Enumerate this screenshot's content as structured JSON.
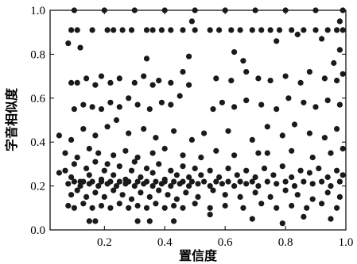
{
  "chart_data": {
    "type": "scatter",
    "xlabel": "置信度",
    "ylabel": "字音相似度",
    "xlim": [
      0.02,
      1.0
    ],
    "ylim": [
      0.0,
      1.0
    ],
    "xticks": [
      0.2,
      0.4,
      0.6,
      0.8,
      1.0
    ],
    "xtick_labels": [
      "0.2",
      "0.4",
      "0.6",
      "0.8",
      "1.0"
    ],
    "yticks": [
      0.0,
      0.2,
      0.4,
      0.6,
      0.8,
      1.0
    ],
    "ytick_labels": [
      "0.0",
      "0.2",
      "0.4",
      "0.6",
      "0.8",
      "1.0"
    ],
    "grid": false,
    "marker_color": "#1a1a1a",
    "series": [
      {
        "points": [
          [
            0.1,
            1.0
          ],
          [
            0.2,
            1.0
          ],
          [
            0.3,
            1.0
          ],
          [
            0.4,
            1.0
          ],
          [
            0.5,
            1.0
          ],
          [
            0.6,
            1.0
          ],
          [
            0.7,
            1.0
          ],
          [
            0.8,
            1.0
          ],
          [
            0.9,
            1.0
          ],
          [
            0.99,
            1.0
          ],
          [
            0.09,
            0.91
          ],
          [
            0.11,
            0.91
          ],
          [
            0.16,
            0.91
          ],
          [
            0.21,
            0.91
          ],
          [
            0.23,
            0.91
          ],
          [
            0.26,
            0.91
          ],
          [
            0.29,
            0.91
          ],
          [
            0.34,
            0.91
          ],
          [
            0.36,
            0.91
          ],
          [
            0.39,
            0.91
          ],
          [
            0.42,
            0.91
          ],
          [
            0.46,
            0.91
          ],
          [
            0.5,
            0.91
          ],
          [
            0.55,
            0.91
          ],
          [
            0.58,
            0.91
          ],
          [
            0.62,
            0.91
          ],
          [
            0.65,
            0.91
          ],
          [
            0.69,
            0.91
          ],
          [
            0.72,
            0.91
          ],
          [
            0.75,
            0.91
          ],
          [
            0.78,
            0.91
          ],
          [
            0.82,
            0.91
          ],
          [
            0.86,
            0.91
          ],
          [
            0.9,
            0.91
          ],
          [
            0.94,
            0.91
          ],
          [
            0.97,
            0.91
          ],
          [
            0.99,
            0.91
          ],
          [
            0.08,
            0.85
          ],
          [
            0.12,
            0.83
          ],
          [
            0.49,
            0.95
          ],
          [
            0.34,
            0.78
          ],
          [
            0.48,
            0.79
          ],
          [
            0.63,
            0.81
          ],
          [
            0.77,
            0.86
          ],
          [
            0.96,
            0.76
          ],
          [
            0.98,
            0.82
          ],
          [
            0.66,
            0.77
          ],
          [
            0.84,
            0.89
          ],
          [
            0.92,
            0.87
          ],
          [
            0.98,
            0.95
          ],
          [
            0.09,
            0.67
          ],
          [
            0.11,
            0.67
          ],
          [
            0.14,
            0.69
          ],
          [
            0.17,
            0.66
          ],
          [
            0.19,
            0.7
          ],
          [
            0.22,
            0.67
          ],
          [
            0.25,
            0.69
          ],
          [
            0.3,
            0.67
          ],
          [
            0.33,
            0.7
          ],
          [
            0.36,
            0.66
          ],
          [
            0.38,
            0.68
          ],
          [
            0.42,
            0.67
          ],
          [
            0.46,
            0.72
          ],
          [
            0.48,
            0.66
          ],
          [
            0.57,
            0.69
          ],
          [
            0.62,
            0.68
          ],
          [
            0.67,
            0.72
          ],
          [
            0.71,
            0.69
          ],
          [
            0.75,
            0.68
          ],
          [
            0.8,
            0.7
          ],
          [
            0.85,
            0.67
          ],
          [
            0.88,
            0.72
          ],
          [
            0.93,
            0.69
          ],
          [
            0.97,
            0.68
          ],
          [
            0.99,
            0.71
          ],
          [
            0.1,
            0.55
          ],
          [
            0.13,
            0.57
          ],
          [
            0.16,
            0.56
          ],
          [
            0.19,
            0.55
          ],
          [
            0.22,
            0.58
          ],
          [
            0.25,
            0.56
          ],
          [
            0.28,
            0.6
          ],
          [
            0.31,
            0.57
          ],
          [
            0.35,
            0.55
          ],
          [
            0.39,
            0.58
          ],
          [
            0.42,
            0.57
          ],
          [
            0.45,
            0.61
          ],
          [
            0.56,
            0.55
          ],
          [
            0.59,
            0.58
          ],
          [
            0.63,
            0.56
          ],
          [
            0.67,
            0.59
          ],
          [
            0.72,
            0.57
          ],
          [
            0.77,
            0.55
          ],
          [
            0.81,
            0.6
          ],
          [
            0.86,
            0.58
          ],
          [
            0.9,
            0.56
          ],
          [
            0.94,
            0.59
          ],
          [
            0.98,
            0.57
          ],
          [
            0.05,
            0.43
          ],
          [
            0.09,
            0.41
          ],
          [
            0.13,
            0.46
          ],
          [
            0.17,
            0.43
          ],
          [
            0.21,
            0.47
          ],
          [
            0.24,
            0.5
          ],
          [
            0.28,
            0.44
          ],
          [
            0.33,
            0.46
          ],
          [
            0.37,
            0.42
          ],
          [
            0.43,
            0.45
          ],
          [
            0.49,
            0.41
          ],
          [
            0.53,
            0.44
          ],
          [
            0.61,
            0.45
          ],
          [
            0.69,
            0.41
          ],
          [
            0.74,
            0.47
          ],
          [
            0.79,
            0.43
          ],
          [
            0.83,
            0.48
          ],
          [
            0.88,
            0.44
          ],
          [
            0.93,
            0.42
          ],
          [
            0.97,
            0.46
          ],
          [
            0.07,
            0.35
          ],
          [
            0.11,
            0.33
          ],
          [
            0.15,
            0.37
          ],
          [
            0.18,
            0.35
          ],
          [
            0.23,
            0.34
          ],
          [
            0.27,
            0.36
          ],
          [
            0.31,
            0.33
          ],
          [
            0.36,
            0.35
          ],
          [
            0.4,
            0.37
          ],
          [
            0.46,
            0.34
          ],
          [
            0.52,
            0.33
          ],
          [
            0.57,
            0.36
          ],
          [
            0.63,
            0.34
          ],
          [
            0.71,
            0.35
          ],
          [
            0.74,
            0.35
          ],
          [
            0.82,
            0.36
          ],
          [
            0.89,
            0.33
          ],
          [
            0.95,
            0.35
          ],
          [
            0.99,
            0.37
          ],
          [
            0.05,
            0.26
          ],
          [
            0.07,
            0.27
          ],
          [
            0.09,
            0.24
          ],
          [
            0.1,
            0.3
          ],
          [
            0.12,
            0.22
          ],
          [
            0.14,
            0.28
          ],
          [
            0.15,
            0.25
          ],
          [
            0.17,
            0.31
          ],
          [
            0.19,
            0.23
          ],
          [
            0.2,
            0.27
          ],
          [
            0.21,
            0.3
          ],
          [
            0.23,
            0.25
          ],
          [
            0.25,
            0.29
          ],
          [
            0.27,
            0.23
          ],
          [
            0.29,
            0.27
          ],
          [
            0.3,
            0.31
          ],
          [
            0.32,
            0.24
          ],
          [
            0.34,
            0.28
          ],
          [
            0.36,
            0.26
          ],
          [
            0.38,
            0.3
          ],
          [
            0.4,
            0.23
          ],
          [
            0.42,
            0.27
          ],
          [
            0.44,
            0.25
          ],
          [
            0.46,
            0.29
          ],
          [
            0.48,
            0.24
          ],
          [
            0.5,
            0.28
          ],
          [
            0.52,
            0.25
          ],
          [
            0.55,
            0.27
          ],
          [
            0.58,
            0.24
          ],
          [
            0.61,
            0.28
          ],
          [
            0.64,
            0.25
          ],
          [
            0.67,
            0.27
          ],
          [
            0.7,
            0.24
          ],
          [
            0.73,
            0.28
          ],
          [
            0.76,
            0.25
          ],
          [
            0.79,
            0.29
          ],
          [
            0.82,
            0.24
          ],
          [
            0.85,
            0.27
          ],
          [
            0.88,
            0.26
          ],
          [
            0.91,
            0.28
          ],
          [
            0.94,
            0.24
          ],
          [
            0.97,
            0.27
          ],
          [
            0.99,
            0.25
          ],
          [
            0.08,
            0.21
          ],
          [
            0.1,
            0.22
          ],
          [
            0.12,
            0.2
          ],
          [
            0.13,
            0.22
          ],
          [
            0.15,
            0.21
          ],
          [
            0.16,
            0.22
          ],
          [
            0.18,
            0.2
          ],
          [
            0.19,
            0.22
          ],
          [
            0.21,
            0.21
          ],
          [
            0.22,
            0.22
          ],
          [
            0.24,
            0.2
          ],
          [
            0.25,
            0.22
          ],
          [
            0.27,
            0.21
          ],
          [
            0.28,
            0.22
          ],
          [
            0.3,
            0.2
          ],
          [
            0.31,
            0.22
          ],
          [
            0.33,
            0.21
          ],
          [
            0.34,
            0.22
          ],
          [
            0.36,
            0.2
          ],
          [
            0.37,
            0.22
          ],
          [
            0.39,
            0.21
          ],
          [
            0.4,
            0.22
          ],
          [
            0.42,
            0.2
          ],
          [
            0.43,
            0.22
          ],
          [
            0.45,
            0.21
          ],
          [
            0.46,
            0.22
          ],
          [
            0.48,
            0.2
          ],
          [
            0.49,
            0.22
          ],
          [
            0.51,
            0.21
          ],
          [
            0.53,
            0.22
          ],
          [
            0.55,
            0.2
          ],
          [
            0.57,
            0.22
          ],
          [
            0.59,
            0.21
          ],
          [
            0.61,
            0.22
          ],
          [
            0.63,
            0.2
          ],
          [
            0.65,
            0.22
          ],
          [
            0.67,
            0.21
          ],
          [
            0.69,
            0.22
          ],
          [
            0.71,
            0.2
          ],
          [
            0.74,
            0.22
          ],
          [
            0.77,
            0.21
          ],
          [
            0.8,
            0.22
          ],
          [
            0.83,
            0.2
          ],
          [
            0.86,
            0.22
          ],
          [
            0.89,
            0.21
          ],
          [
            0.92,
            0.22
          ],
          [
            0.95,
            0.2
          ],
          [
            0.98,
            0.22
          ],
          [
            0.09,
            0.16
          ],
          [
            0.11,
            0.18
          ],
          [
            0.14,
            0.15
          ],
          [
            0.17,
            0.17
          ],
          [
            0.2,
            0.15
          ],
          [
            0.23,
            0.18
          ],
          [
            0.26,
            0.16
          ],
          [
            0.29,
            0.14
          ],
          [
            0.32,
            0.17
          ],
          [
            0.35,
            0.15
          ],
          [
            0.38,
            0.18
          ],
          [
            0.41,
            0.16
          ],
          [
            0.44,
            0.14
          ],
          [
            0.47,
            0.17
          ],
          [
            0.51,
            0.15
          ],
          [
            0.56,
            0.18
          ],
          [
            0.6,
            0.16
          ],
          [
            0.65,
            0.15
          ],
          [
            0.7,
            0.17
          ],
          [
            0.75,
            0.15
          ],
          [
            0.8,
            0.18
          ],
          [
            0.84,
            0.16
          ],
          [
            0.89,
            0.14
          ],
          [
            0.94,
            0.17
          ],
          [
            0.98,
            0.15
          ],
          [
            0.08,
            0.11
          ],
          [
            0.1,
            0.1
          ],
          [
            0.13,
            0.12
          ],
          [
            0.16,
            0.1
          ],
          [
            0.19,
            0.11
          ],
          [
            0.22,
            0.1
          ],
          [
            0.25,
            0.12
          ],
          [
            0.28,
            0.1
          ],
          [
            0.31,
            0.11
          ],
          [
            0.34,
            0.1
          ],
          [
            0.37,
            0.12
          ],
          [
            0.4,
            0.1
          ],
          [
            0.43,
            0.11
          ],
          [
            0.46,
            0.1
          ],
          [
            0.5,
            0.12
          ],
          [
            0.55,
            0.1
          ],
          [
            0.6,
            0.11
          ],
          [
            0.66,
            0.1
          ],
          [
            0.72,
            0.12
          ],
          [
            0.77,
            0.1
          ],
          [
            0.82,
            0.11
          ],
          [
            0.87,
            0.1
          ],
          [
            0.92,
            0.12
          ],
          [
            0.97,
            0.1
          ],
          [
            0.15,
            0.04
          ],
          [
            0.17,
            0.04
          ],
          [
            0.31,
            0.04
          ],
          [
            0.35,
            0.04
          ],
          [
            0.43,
            0.04
          ],
          [
            0.55,
            0.07
          ],
          [
            0.69,
            0.05
          ],
          [
            0.79,
            0.03
          ],
          [
            0.86,
            0.06
          ],
          [
            0.95,
            0.05
          ]
        ]
      }
    ]
  }
}
